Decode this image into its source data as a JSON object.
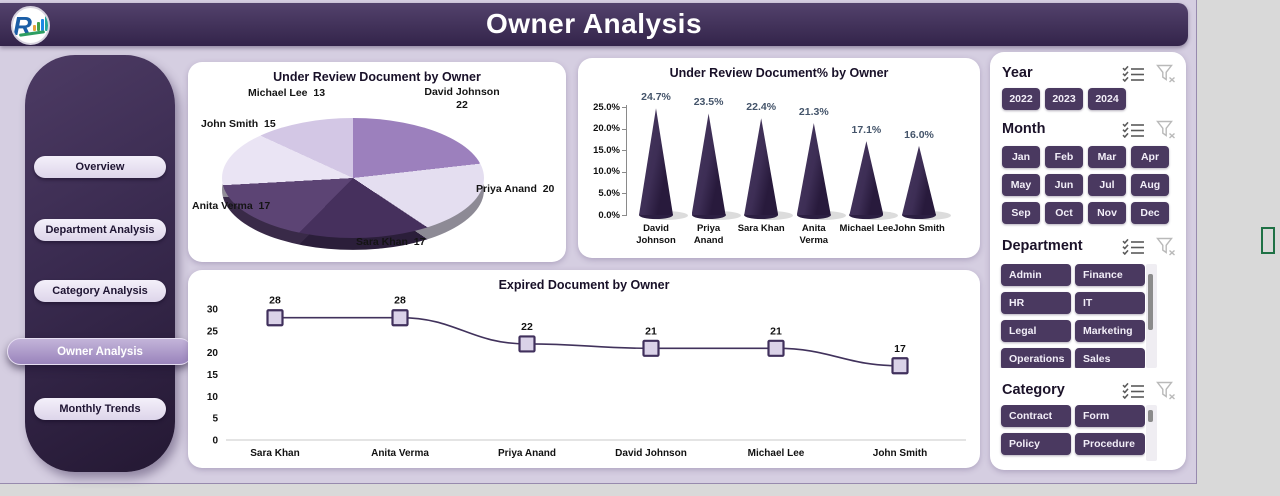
{
  "header": {
    "title": "Owner Analysis",
    "logo": "company-logo"
  },
  "sidebar": {
    "items": [
      {
        "label": "Overview",
        "active": false
      },
      {
        "label": "Department Analysis",
        "active": false
      },
      {
        "label": "Category Analysis",
        "active": false
      },
      {
        "label": "Owner Analysis",
        "active": true
      },
      {
        "label": "Monthly Trends",
        "active": false
      }
    ]
  },
  "slicers": {
    "header_icons": [
      "multi-select",
      "clear-filter"
    ],
    "year": {
      "title": "Year",
      "options": [
        "2022",
        "2023",
        "2024"
      ]
    },
    "month": {
      "title": "Month",
      "options": [
        "Jan",
        "Feb",
        "Mar",
        "Apr",
        "May",
        "Jun",
        "Jul",
        "Aug",
        "Sep",
        "Oct",
        "Nov",
        "Dec"
      ]
    },
    "department": {
      "title": "Department",
      "options": [
        "Admin",
        "Finance",
        "HR",
        "IT",
        "Legal",
        "Marketing",
        "Operations",
        "Sales"
      ]
    },
    "category": {
      "title": "Category",
      "options": [
        "Contract",
        "Form",
        "Policy",
        "Procedure"
      ]
    }
  },
  "colors": {
    "header_bg": "#3b2b4e",
    "dashboard_bg": "#d5cee1",
    "slicer_button_bg": "#4a3960",
    "active_nav_bg": "#a28bc2",
    "cone_fill": "#3a2b50",
    "line_color": "#41325c",
    "marker_fill": "#dad2e8",
    "value_label_color": "#44546a",
    "excel_green": "#1e7145"
  },
  "chart_data": [
    {
      "type": "pie",
      "title": "Under Review Document by Owner",
      "labels": [
        "David Johnson",
        "Priya Anand",
        "Sara Khan",
        "Anita Verma",
        "John Smith",
        "Michael Lee"
      ],
      "values": [
        22,
        20,
        17,
        17,
        15,
        13
      ],
      "colors": [
        "#9c80bd",
        "#e4def0",
        "#46305d",
        "#5c4474",
        "#eae4f4",
        "#d3c7e5"
      ],
      "style": "3d-pie",
      "start_angle_deg": 0
    },
    {
      "type": "bar",
      "subtype": "cone-3d",
      "title": "Under Review Document% by Owner",
      "categories": [
        "David Johnson",
        "Priya Anand",
        "Sara Khan",
        "Anita Verma",
        "Michael Lee",
        "John Smith"
      ],
      "values": [
        24.7,
        23.5,
        22.4,
        21.3,
        17.1,
        16.0
      ],
      "value_labels": [
        "24.7%",
        "23.5%",
        "22.4%",
        "21.3%",
        "17.1%",
        "16.0%"
      ],
      "ytick_labels": [
        "0.0%",
        "5.0%",
        "10.0%",
        "15.0%",
        "20.0%",
        "25.0%"
      ],
      "ylim": [
        0,
        25
      ],
      "ytick_step": 5,
      "grid": false,
      "legend": "none"
    },
    {
      "type": "line",
      "title": "Expired Document by Owner",
      "categories": [
        "Sara Khan",
        "Anita Verma",
        "Priya Anand",
        "David Johnson",
        "Michael Lee",
        "John Smith"
      ],
      "values": [
        28,
        28,
        22,
        21,
        21,
        17
      ],
      "ylim": [
        0,
        30
      ],
      "ytick_step": 5,
      "marker": "square",
      "grid": false,
      "legend": "none"
    }
  ]
}
